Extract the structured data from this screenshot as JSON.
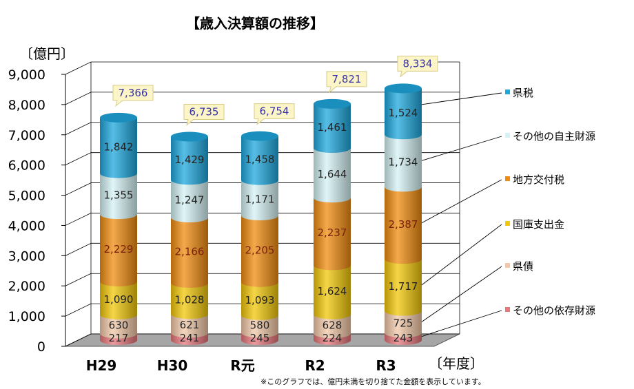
{
  "chart_data": {
    "type": "bar",
    "stacked": true,
    "title": "【歳入決算額の推移】",
    "y_unit_label": "〔億円〕",
    "x_unit_label": "〔年度〕",
    "note": "※このグラフでは、億円未満を切り捨てた金額を表示しています。",
    "categories": [
      "H29",
      "H30",
      "R元",
      "R2",
      "R3"
    ],
    "ylim": [
      0,
      9000
    ],
    "y_ticks": [
      "0",
      "1,000",
      "2,000",
      "3,000",
      "4,000",
      "5,000",
      "6,000",
      "7,000",
      "8,000",
      "9,000"
    ],
    "grid": true,
    "legend_position": "right",
    "series": [
      {
        "name": "その他の依存財源",
        "color": "#e8787c",
        "values": [
          217,
          241,
          245,
          224,
          243
        ],
        "labels": [
          "217",
          "241",
          "245",
          "224",
          "243"
        ]
      },
      {
        "name": "県債",
        "color": "#f2c8a8",
        "values": [
          630,
          621,
          580,
          628,
          725
        ],
        "labels": [
          "630",
          "621",
          "580",
          "628",
          "725"
        ]
      },
      {
        "name": "国庫支出金",
        "color": "#f2c80a",
        "values": [
          1090,
          1028,
          1093,
          1624,
          1717
        ],
        "labels": [
          "1,090",
          "1,028",
          "1,093",
          "1,624",
          "1,717"
        ]
      },
      {
        "name": "地方交付税",
        "color": "#f08c10",
        "values": [
          2229,
          2166,
          2205,
          2237,
          2387
        ],
        "labels": [
          "2,229",
          "2,166",
          "2,205",
          "2,237",
          "2,387"
        ]
      },
      {
        "name": "その他の自主財源",
        "color": "#d4f2f4",
        "values": [
          1355,
          1247,
          1171,
          1644,
          1734
        ],
        "labels": [
          "1,355",
          "1,247",
          "1,171",
          "1,644",
          "1,734"
        ]
      },
      {
        "name": "県税",
        "color": "#1fa8de",
        "values": [
          1842,
          1429,
          1458,
          1461,
          1524
        ],
        "labels": [
          "1,842",
          "1,429",
          "1,458",
          "1,461",
          "1,524"
        ]
      }
    ],
    "totals": [
      "7,366",
      "6,735",
      "6,754",
      "7,821",
      "8,334"
    ],
    "legend_order": [
      "県税",
      "その他の自主財源",
      "地方交付税",
      "国庫支出金",
      "県債",
      "その他の依存財源"
    ]
  }
}
